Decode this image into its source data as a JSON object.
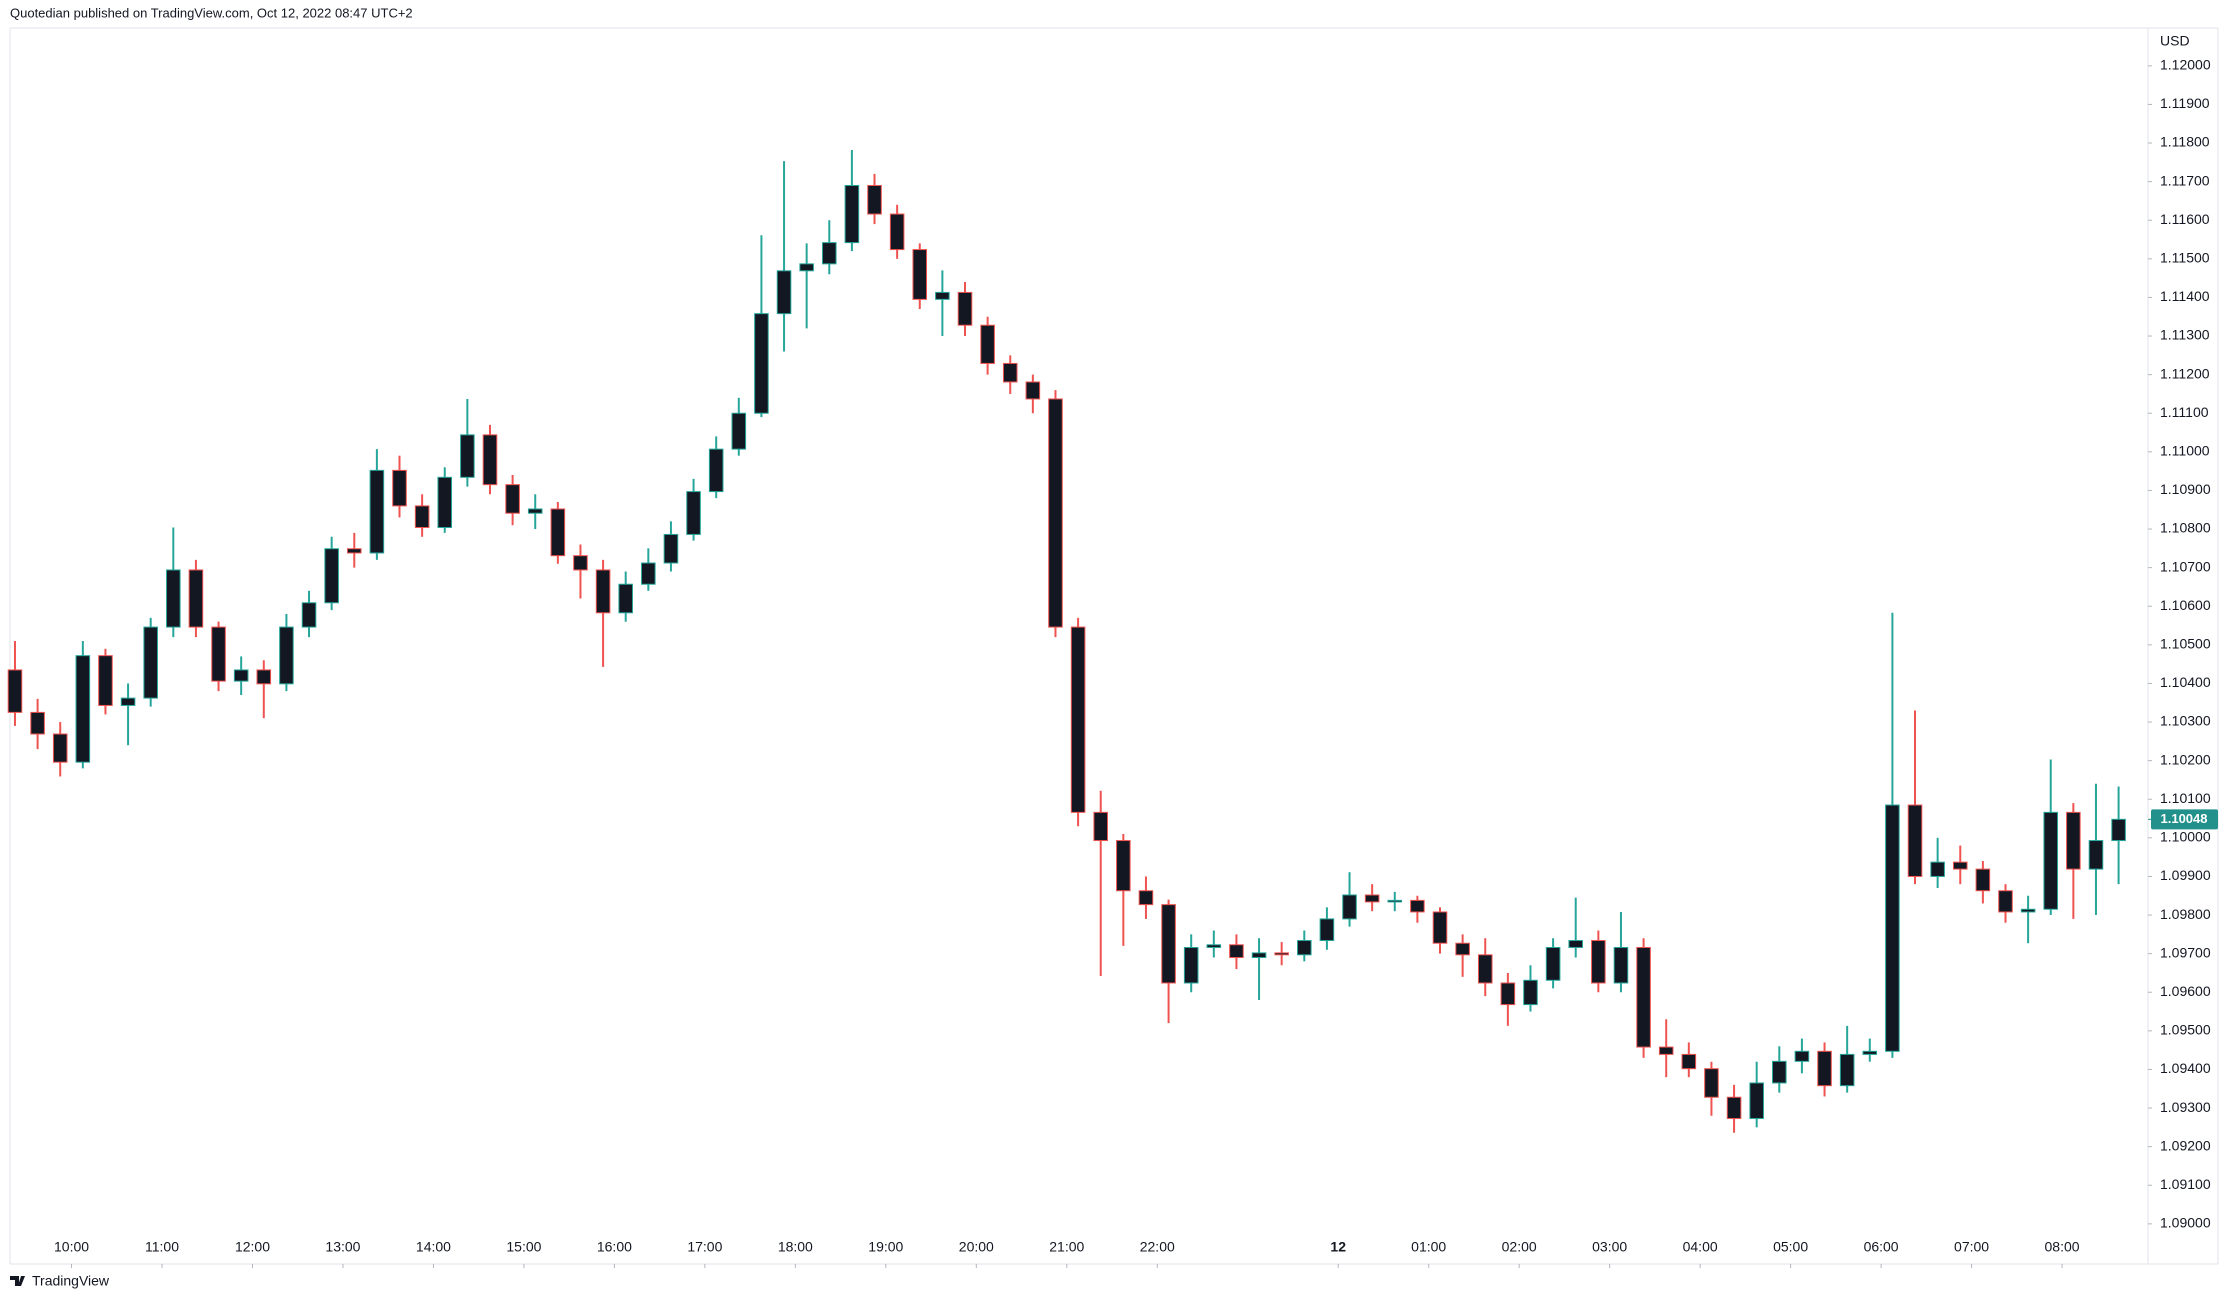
{
  "header": "Quotedian published on TradingView.com, Oct 12, 2022 08:47 UTC+2",
  "footer": "TradingView",
  "chart_data": {
    "type": "candlestick",
    "currency": "USD",
    "body_color": "#131722",
    "up_color": "#26a69a",
    "down_color": "#ef5350",
    "last_price_color": "#22918b",
    "grid": false,
    "xlim": [
      9.32,
      32.95
    ],
    "ylim": [
      1.08896,
      1.12098
    ],
    "xticks": [
      {
        "value": 10,
        "label": "10:00"
      },
      {
        "value": 11,
        "label": "11:00"
      },
      {
        "value": 12,
        "label": "12:00"
      },
      {
        "value": 13,
        "label": "13:00"
      },
      {
        "value": 14,
        "label": "14:00"
      },
      {
        "value": 15,
        "label": "15:00"
      },
      {
        "value": 16,
        "label": "16:00"
      },
      {
        "value": 17,
        "label": "17:00"
      },
      {
        "value": 18,
        "label": "18:00"
      },
      {
        "value": 19,
        "label": "19:00"
      },
      {
        "value": 20,
        "label": "20:00"
      },
      {
        "value": 21,
        "label": "21:00"
      },
      {
        "value": 22,
        "label": "22:00"
      },
      {
        "value": 24,
        "label": "12"
      },
      {
        "value": 25,
        "label": "01:00"
      },
      {
        "value": 26,
        "label": "02:00"
      },
      {
        "value": 27,
        "label": "03:00"
      },
      {
        "value": 28,
        "label": "04:00"
      },
      {
        "value": 29,
        "label": "05:00"
      },
      {
        "value": 30,
        "label": "06:00"
      },
      {
        "value": 31,
        "label": "07:00"
      },
      {
        "value": 32,
        "label": "08:00"
      }
    ],
    "yticks": [
      {
        "value": 1.09,
        "label": "1.09000"
      },
      {
        "value": 1.091,
        "label": "1.09100"
      },
      {
        "value": 1.092,
        "label": "1.09200"
      },
      {
        "value": 1.093,
        "label": "1.09300"
      },
      {
        "value": 1.094,
        "label": "1.09400"
      },
      {
        "value": 1.095,
        "label": "1.09500"
      },
      {
        "value": 1.096,
        "label": "1.09600"
      },
      {
        "value": 1.097,
        "label": "1.09700"
      },
      {
        "value": 1.098,
        "label": "1.09800"
      },
      {
        "value": 1.099,
        "label": "1.09900"
      },
      {
        "value": 1.1,
        "label": "1.10000"
      },
      {
        "value": 1.101,
        "label": "1.10100"
      },
      {
        "value": 1.102,
        "label": "1.10200"
      },
      {
        "value": 1.103,
        "label": "1.10300"
      },
      {
        "value": 1.104,
        "label": "1.10400"
      },
      {
        "value": 1.105,
        "label": "1.10500"
      },
      {
        "value": 1.106,
        "label": "1.10600"
      },
      {
        "value": 1.107,
        "label": "1.10700"
      },
      {
        "value": 1.108,
        "label": "1.10800"
      },
      {
        "value": 1.109,
        "label": "1.10900"
      },
      {
        "value": 1.11,
        "label": "1.11000"
      },
      {
        "value": 1.111,
        "label": "1.11100"
      },
      {
        "value": 1.112,
        "label": "1.11200"
      },
      {
        "value": 1.113,
        "label": "1.11300"
      },
      {
        "value": 1.114,
        "label": "1.11400"
      },
      {
        "value": 1.115,
        "label": "1.11500"
      },
      {
        "value": 1.116,
        "label": "1.11600"
      },
      {
        "value": 1.117,
        "label": "1.11700"
      },
      {
        "value": 1.118,
        "label": "1.11800"
      },
      {
        "value": 1.119,
        "label": "1.11900"
      },
      {
        "value": 1.12,
        "label": "1.12000"
      }
    ],
    "x": [
      9.375,
      9.625,
      9.875,
      10.125,
      10.375,
      10.625,
      10.875,
      11.125,
      11.375,
      11.625,
      11.875,
      12.125,
      12.375,
      12.625,
      12.875,
      13.125,
      13.375,
      13.625,
      13.875,
      14.125,
      14.375,
      14.625,
      14.875,
      15.125,
      15.375,
      15.625,
      15.875,
      16.125,
      16.375,
      16.625,
      16.875,
      17.125,
      17.375,
      17.625,
      17.875,
      18.125,
      18.375,
      18.625,
      18.875,
      19.125,
      19.375,
      19.625,
      19.875,
      20.125,
      20.375,
      20.625,
      20.875,
      21.125,
      21.375,
      21.625,
      21.875,
      22.125,
      22.375,
      22.625,
      22.875,
      23.125,
      23.375,
      23.625,
      23.875,
      24.125,
      24.375,
      24.625,
      24.875,
      25.125,
      25.375,
      25.625,
      25.875,
      26.125,
      26.375,
      26.625,
      26.875,
      27.125,
      27.375,
      27.625,
      27.875,
      28.125,
      28.375,
      28.625,
      28.875,
      29.125,
      29.375,
      29.625,
      29.875,
      30.125,
      30.375,
      30.625,
      30.875,
      31.125,
      31.375,
      31.625,
      31.875,
      32.125,
      32.375,
      32.625
    ],
    "open": [
      1.10435,
      1.10325,
      1.10269,
      1.10196,
      1.10472,
      1.10343,
      1.10362,
      1.10546,
      1.10694,
      1.10546,
      1.10406,
      1.10435,
      1.10399,
      1.10546,
      1.10609,
      1.10749,
      1.10738,
      1.10952,
      1.1086,
      1.10804,
      1.10934,
      1.11044,
      1.10915,
      1.10841,
      1.10852,
      1.10731,
      1.10694,
      1.10583,
      1.10657,
      1.10712,
      1.10786,
      1.10897,
      1.11007,
      1.111,
      1.11358,
      1.11469,
      1.11487,
      1.11542,
      1.1169,
      1.11616,
      1.11524,
      1.11395,
      1.11413,
      1.11328,
      1.11229,
      1.11181,
      1.11137,
      1.10546,
      1.10066,
      1.09993,
      1.09863,
      1.09827,
      1.09624,
      1.09716,
      1.09723,
      1.0969,
      1.09702,
      1.09697,
      1.09734,
      1.0979,
      1.09852,
      1.09834,
      1.09838,
      1.09808,
      1.09727,
      1.09697,
      1.09624,
      1.09568,
      1.09631,
      1.09716,
      1.09734,
      1.09624,
      1.09716,
      1.09458,
      1.09439,
      1.09402,
      1.09328,
      1.09273,
      1.09365,
      1.09421,
      1.09447,
      1.09358,
      1.09439,
      1.09447,
      1.10085,
      1.099,
      1.09937,
      1.09919,
      1.09863,
      1.09808,
      1.09815,
      1.10066,
      1.09919,
      1.09993
    ],
    "high": [
      1.1051,
      1.1036,
      1.103,
      1.1051,
      1.1049,
      1.104,
      1.1057,
      1.10804,
      1.1072,
      1.1056,
      1.1047,
      1.1046,
      1.1058,
      1.1064,
      1.1078,
      1.1079,
      1.11007,
      1.1099,
      1.1089,
      1.1096,
      1.11137,
      1.1107,
      1.1094,
      1.1089,
      1.1087,
      1.1076,
      1.1072,
      1.1069,
      1.1075,
      1.1082,
      1.1093,
      1.1104,
      1.1114,
      1.11561,
      1.11753,
      1.1154,
      1.116,
      1.11782,
      1.1172,
      1.1164,
      1.1154,
      1.1147,
      1.1144,
      1.1135,
      1.1125,
      1.112,
      1.1116,
      1.1057,
      1.10122,
      1.1001,
      1.099,
      1.0984,
      1.0975,
      1.0976,
      1.0975,
      1.0974,
      1.0973,
      1.0976,
      1.0982,
      1.09911,
      1.0988,
      1.0986,
      1.0985,
      1.0982,
      1.0975,
      1.0974,
      1.0965,
      1.0967,
      1.0974,
      1.09845,
      1.0976,
      1.09808,
      1.0974,
      1.0953,
      1.0947,
      1.0942,
      1.0936,
      1.0942,
      1.0946,
      1.0948,
      1.0947,
      1.09513,
      1.0948,
      1.10583,
      1.1033,
      1.1,
      1.0998,
      1.0994,
      1.0988,
      1.0985,
      1.10203,
      1.1009,
      1.1014,
      1.10133
    ],
    "low": [
      1.1029,
      1.1023,
      1.10159,
      1.1018,
      1.1032,
      1.1024,
      1.1034,
      1.1052,
      1.1052,
      1.1038,
      1.1037,
      1.1031,
      1.1038,
      1.1052,
      1.1059,
      1.107,
      1.1072,
      1.1083,
      1.1078,
      1.1079,
      1.1091,
      1.1089,
      1.1081,
      1.108,
      1.1071,
      1.1062,
      1.10443,
      1.1056,
      1.1064,
      1.1069,
      1.1077,
      1.1088,
      1.1099,
      1.1109,
      1.1126,
      1.1132,
      1.1146,
      1.1152,
      1.1159,
      1.115,
      1.1137,
      1.113,
      1.113,
      1.112,
      1.1115,
      1.111,
      1.1052,
      1.1003,
      1.09642,
      1.0972,
      1.0979,
      1.0952,
      1.096,
      1.0969,
      1.0966,
      1.0958,
      1.0967,
      1.0968,
      1.0971,
      1.0977,
      1.0981,
      1.0981,
      1.0978,
      1.097,
      1.0964,
      1.0959,
      1.09513,
      1.0955,
      1.0961,
      1.0969,
      1.096,
      1.096,
      1.0943,
      1.0938,
      1.0938,
      1.0928,
      1.09236,
      1.0925,
      1.0934,
      1.0939,
      1.0933,
      1.0934,
      1.0942,
      1.0943,
      1.0988,
      1.0987,
      1.0988,
      1.0983,
      1.0978,
      1.09727,
      1.098,
      1.0979,
      1.098,
      1.0988
    ],
    "close": [
      1.10325,
      1.10269,
      1.10196,
      1.10472,
      1.10343,
      1.10362,
      1.10546,
      1.10694,
      1.10546,
      1.10406,
      1.10435,
      1.10399,
      1.10546,
      1.10609,
      1.10749,
      1.10738,
      1.10952,
      1.1086,
      1.10804,
      1.10934,
      1.11044,
      1.10915,
      1.10841,
      1.10852,
      1.10731,
      1.10694,
      1.10583,
      1.10657,
      1.10712,
      1.10786,
      1.10897,
      1.11007,
      1.111,
      1.11358,
      1.11469,
      1.11487,
      1.11542,
      1.1169,
      1.11616,
      1.11524,
      1.11395,
      1.11413,
      1.11328,
      1.11229,
      1.11181,
      1.11137,
      1.10546,
      1.10066,
      1.09993,
      1.09863,
      1.09827,
      1.09624,
      1.09716,
      1.09723,
      1.0969,
      1.09702,
      1.09697,
      1.09734,
      1.0979,
      1.09852,
      1.09834,
      1.09838,
      1.09808,
      1.09727,
      1.09697,
      1.09624,
      1.09568,
      1.09631,
      1.09716,
      1.09734,
      1.09624,
      1.09716,
      1.09458,
      1.09439,
      1.09402,
      1.09328,
      1.09273,
      1.09365,
      1.09421,
      1.09447,
      1.09358,
      1.09439,
      1.09447,
      1.10085,
      1.099,
      1.09937,
      1.09919,
      1.09863,
      1.09808,
      1.09815,
      1.10066,
      1.09919,
      1.09993,
      1.10048
    ]
  }
}
